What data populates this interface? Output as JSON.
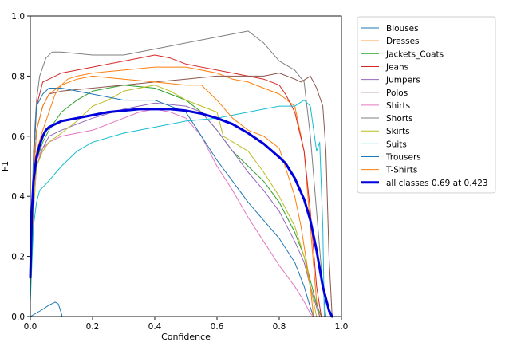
{
  "chart_data": {
    "type": "line",
    "xlabel": "Confidence",
    "ylabel": "F1",
    "xlim": [
      0,
      1
    ],
    "ylim": [
      0,
      1
    ],
    "xticks": [
      "0.0",
      "0.2",
      "0.4",
      "0.6",
      "0.8",
      "1.0"
    ],
    "yticks": [
      "0.0",
      "0.2",
      "0.4",
      "0.6",
      "0.8",
      "1.0"
    ],
    "grid": false,
    "legend_position": "outside-right-top",
    "series": [
      {
        "name": "Blouses",
        "color": "#1f77b4",
        "width": 1,
        "x": [
          0,
          0.02,
          0.04,
          0.06,
          0.08,
          0.09,
          0.1,
          0.102
        ],
        "y": [
          0.0,
          0.012,
          0.024,
          0.038,
          0.048,
          0.042,
          0.01,
          0
        ]
      },
      {
        "name": "Dresses",
        "color": "#ff7f0e",
        "width": 1,
        "x": [
          0,
          0.01,
          0.02,
          0.04,
          0.06,
          0.08,
          0.1,
          0.12,
          0.15,
          0.2,
          0.3,
          0.4,
          0.5,
          0.55,
          0.6,
          0.65,
          0.7,
          0.75,
          0.8,
          0.85,
          0.88,
          0.9,
          0.92,
          0.93
        ],
        "y": [
          0.1,
          0.4,
          0.55,
          0.62,
          0.68,
          0.74,
          0.77,
          0.79,
          0.8,
          0.81,
          0.82,
          0.83,
          0.83,
          0.82,
          0.81,
          0.79,
          0.78,
          0.76,
          0.74,
          0.7,
          0.55,
          0.3,
          0.05,
          0
        ]
      },
      {
        "name": "Jackets_Coats",
        "color": "#2ca02c",
        "width": 1,
        "x": [
          0,
          0.01,
          0.02,
          0.04,
          0.06,
          0.08,
          0.1,
          0.15,
          0.2,
          0.3,
          0.4,
          0.5,
          0.55,
          0.6,
          0.65,
          0.7,
          0.75,
          0.8,
          0.85,
          0.88,
          0.9,
          0.92,
          0.935
        ],
        "y": [
          0.1,
          0.4,
          0.52,
          0.58,
          0.62,
          0.65,
          0.68,
          0.72,
          0.75,
          0.77,
          0.76,
          0.72,
          0.68,
          0.62,
          0.55,
          0.5,
          0.45,
          0.38,
          0.28,
          0.2,
          0.12,
          0.04,
          0
        ]
      },
      {
        "name": "Jeans",
        "color": "#d62728",
        "width": 1,
        "x": [
          0,
          0.01,
          0.02,
          0.04,
          0.06,
          0.1,
          0.15,
          0.2,
          0.3,
          0.4,
          0.45,
          0.5,
          0.6,
          0.7,
          0.75,
          0.8,
          0.82,
          0.85,
          0.88,
          0.9,
          0.92,
          0.935
        ],
        "y": [
          0.1,
          0.5,
          0.7,
          0.78,
          0.79,
          0.81,
          0.82,
          0.83,
          0.85,
          0.87,
          0.86,
          0.84,
          0.82,
          0.8,
          0.79,
          0.77,
          0.74,
          0.68,
          0.55,
          0.35,
          0.1,
          0
        ]
      },
      {
        "name": "Jumpers",
        "color": "#9467bd",
        "width": 1,
        "x": [
          0,
          0.01,
          0.02,
          0.04,
          0.06,
          0.1,
          0.15,
          0.2,
          0.3,
          0.4,
          0.5,
          0.55,
          0.6,
          0.65,
          0.7,
          0.75,
          0.8,
          0.85,
          0.88,
          0.9,
          0.92,
          0.93
        ],
        "y": [
          0.1,
          0.35,
          0.5,
          0.56,
          0.6,
          0.62,
          0.64,
          0.66,
          0.69,
          0.71,
          0.7,
          0.68,
          0.62,
          0.55,
          0.48,
          0.42,
          0.35,
          0.25,
          0.18,
          0.1,
          0.03,
          0
        ]
      },
      {
        "name": "Polos",
        "color": "#8c564b",
        "width": 1,
        "x": [
          0,
          0.01,
          0.02,
          0.04,
          0.06,
          0.1,
          0.2,
          0.3,
          0.4,
          0.5,
          0.6,
          0.7,
          0.75,
          0.8,
          0.85,
          0.87,
          0.9,
          0.92,
          0.94,
          0.95,
          0.96,
          0.97
        ],
        "y": [
          0.1,
          0.45,
          0.62,
          0.7,
          0.74,
          0.75,
          0.76,
          0.77,
          0.78,
          0.79,
          0.8,
          0.8,
          0.8,
          0.81,
          0.79,
          0.78,
          0.8,
          0.76,
          0.7,
          0.55,
          0.2,
          0
        ]
      },
      {
        "name": "Shirts",
        "color": "#e377c2",
        "width": 1,
        "x": [
          0,
          0.01,
          0.02,
          0.04,
          0.06,
          0.1,
          0.15,
          0.2,
          0.3,
          0.35,
          0.4,
          0.45,
          0.5,
          0.55,
          0.6,
          0.65,
          0.7,
          0.75,
          0.8,
          0.85,
          0.88,
          0.9,
          0.91
        ],
        "y": [
          0.1,
          0.4,
          0.52,
          0.56,
          0.58,
          0.6,
          0.61,
          0.62,
          0.66,
          0.68,
          0.69,
          0.68,
          0.66,
          0.6,
          0.5,
          0.42,
          0.33,
          0.25,
          0.17,
          0.1,
          0.05,
          0.01,
          0
        ]
      },
      {
        "name": "Shorts",
        "color": "#7f7f7f",
        "width": 1,
        "x": [
          0,
          0.01,
          0.02,
          0.03,
          0.05,
          0.07,
          0.1,
          0.2,
          0.3,
          0.4,
          0.5,
          0.6,
          0.7,
          0.75,
          0.8,
          0.85,
          0.88,
          0.9,
          0.92,
          0.94,
          0.95
        ],
        "y": [
          0.15,
          0.55,
          0.72,
          0.8,
          0.86,
          0.88,
          0.88,
          0.87,
          0.87,
          0.89,
          0.91,
          0.93,
          0.95,
          0.91,
          0.85,
          0.82,
          0.78,
          0.6,
          0.35,
          0.1,
          0
        ]
      },
      {
        "name": "Skirts",
        "color": "#bcbd22",
        "width": 1,
        "x": [
          0,
          0.01,
          0.02,
          0.04,
          0.06,
          0.1,
          0.15,
          0.2,
          0.25,
          0.3,
          0.35,
          0.4,
          0.45,
          0.5,
          0.6,
          0.62,
          0.7,
          0.75,
          0.8,
          0.85,
          0.88,
          0.9,
          0.92
        ],
        "y": [
          0.1,
          0.35,
          0.5,
          0.55,
          0.58,
          0.61,
          0.65,
          0.7,
          0.72,
          0.75,
          0.76,
          0.77,
          0.75,
          0.72,
          0.68,
          0.6,
          0.55,
          0.48,
          0.4,
          0.3,
          0.2,
          0.1,
          0
        ]
      },
      {
        "name": "Suits",
        "color": "#17becf",
        "width": 1,
        "x": [
          0,
          0.01,
          0.02,
          0.03,
          0.05,
          0.1,
          0.15,
          0.2,
          0.3,
          0.4,
          0.5,
          0.6,
          0.7,
          0.8,
          0.85,
          0.88,
          0.9,
          0.92,
          0.93,
          0.94,
          0.945
        ],
        "y": [
          0.05,
          0.3,
          0.38,
          0.42,
          0.44,
          0.5,
          0.55,
          0.58,
          0.61,
          0.63,
          0.65,
          0.66,
          0.68,
          0.7,
          0.7,
          0.72,
          0.7,
          0.55,
          0.58,
          0.3,
          0
        ]
      },
      {
        "name": "Trousers",
        "color": "#1f77b4",
        "width": 1,
        "x": [
          0,
          0.01,
          0.02,
          0.04,
          0.06,
          0.1,
          0.15,
          0.2,
          0.3,
          0.4,
          0.5,
          0.55,
          0.6,
          0.65,
          0.7,
          0.75,
          0.8,
          0.85,
          0.88,
          0.9,
          0.91
        ],
        "y": [
          0.1,
          0.5,
          0.7,
          0.74,
          0.76,
          0.76,
          0.75,
          0.74,
          0.72,
          0.72,
          0.68,
          0.6,
          0.52,
          0.45,
          0.38,
          0.32,
          0.26,
          0.18,
          0.1,
          0.03,
          0
        ]
      },
      {
        "name": "T-Shirts",
        "color": "#ff7f0e",
        "width": 1,
        "x": [
          0,
          0.01,
          0.02,
          0.04,
          0.06,
          0.1,
          0.15,
          0.2,
          0.3,
          0.4,
          0.5,
          0.55,
          0.6,
          0.65,
          0.7,
          0.75,
          0.8,
          0.85,
          0.87,
          0.9,
          0.91
        ],
        "y": [
          0.1,
          0.45,
          0.62,
          0.7,
          0.74,
          0.77,
          0.79,
          0.8,
          0.79,
          0.78,
          0.77,
          0.77,
          0.72,
          0.66,
          0.62,
          0.6,
          0.56,
          0.4,
          0.3,
          0.1,
          0
        ]
      },
      {
        "name": "all classes 0.69 at 0.423",
        "color": "#0000dd",
        "width": 3,
        "x": [
          0,
          0.005,
          0.01,
          0.02,
          0.03,
          0.04,
          0.05,
          0.06,
          0.08,
          0.1,
          0.15,
          0.2,
          0.25,
          0.3,
          0.35,
          0.4,
          0.423,
          0.45,
          0.5,
          0.55,
          0.6,
          0.65,
          0.7,
          0.75,
          0.8,
          0.82,
          0.85,
          0.88,
          0.9,
          0.92,
          0.94,
          0.96,
          0.97
        ],
        "y": [
          0.13,
          0.35,
          0.45,
          0.53,
          0.57,
          0.6,
          0.62,
          0.63,
          0.64,
          0.65,
          0.66,
          0.67,
          0.68,
          0.685,
          0.69,
          0.69,
          0.69,
          0.69,
          0.685,
          0.675,
          0.66,
          0.64,
          0.61,
          0.575,
          0.53,
          0.51,
          0.46,
          0.39,
          0.32,
          0.22,
          0.1,
          0.02,
          0
        ]
      }
    ]
  }
}
